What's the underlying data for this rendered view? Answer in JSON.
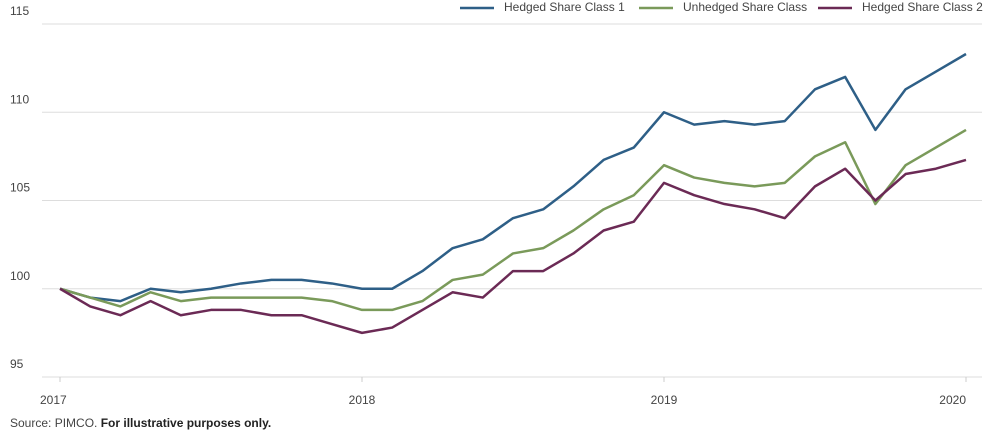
{
  "chart_data": {
    "type": "line",
    "x": [
      2017,
      2017.1,
      2017.2,
      2017.3,
      2017.4,
      2017.5,
      2017.6,
      2017.7,
      2017.8,
      2017.9,
      2018,
      2018.1,
      2018.2,
      2018.3,
      2018.4,
      2018.5,
      2018.6,
      2018.7,
      2018.8,
      2018.9,
      2019,
      2019.1,
      2019.2,
      2019.3,
      2019.4,
      2019.5,
      2019.6,
      2019.7,
      2019.8,
      2019.9,
      2020
    ],
    "series": [
      {
        "name": "Hedged Share Class 1",
        "color": "#2e5f87",
        "values": [
          100,
          99.5,
          99.3,
          100,
          99.8,
          100,
          100.3,
          100.5,
          100.5,
          100.3,
          100,
          100,
          101,
          102.3,
          102.8,
          104,
          104.5,
          105.8,
          107.3,
          108,
          110,
          109.3,
          109.5,
          109.3,
          109.5,
          111.3,
          112,
          109,
          111.3,
          112.3,
          113.3
        ]
      },
      {
        "name": "Unhedged Share Class",
        "color": "#7a9a5a",
        "values": [
          100,
          99.5,
          99,
          99.8,
          99.3,
          99.5,
          99.5,
          99.5,
          99.5,
          99.3,
          98.8,
          98.8,
          99.3,
          100.5,
          100.8,
          102,
          102.3,
          103.3,
          104.5,
          105.3,
          107,
          106.3,
          106,
          105.8,
          106,
          107.5,
          108.3,
          104.8,
          107,
          108,
          109
        ]
      },
      {
        "name": "Hedged Share Class 2",
        "color": "#6b2a55",
        "values": [
          100,
          99,
          98.5,
          99.3,
          98.5,
          98.8,
          98.8,
          98.5,
          98.5,
          98,
          97.5,
          97.8,
          98.8,
          99.8,
          99.5,
          101,
          101,
          102,
          103.3,
          103.8,
          106,
          105.3,
          104.8,
          104.5,
          104,
          105.8,
          106.8,
          105,
          106.5,
          106.8,
          107.3
        ]
      }
    ],
    "xlim": [
      2017,
      2020
    ],
    "xticks": [
      2017,
      2018,
      2019,
      2020
    ],
    "ylim": [
      95,
      115
    ],
    "yticks": [
      95,
      100,
      105,
      110,
      115
    ],
    "grid": true,
    "legend": "top-right",
    "source": "Source: PIMCO.",
    "note": "For illustrative purposes only."
  }
}
